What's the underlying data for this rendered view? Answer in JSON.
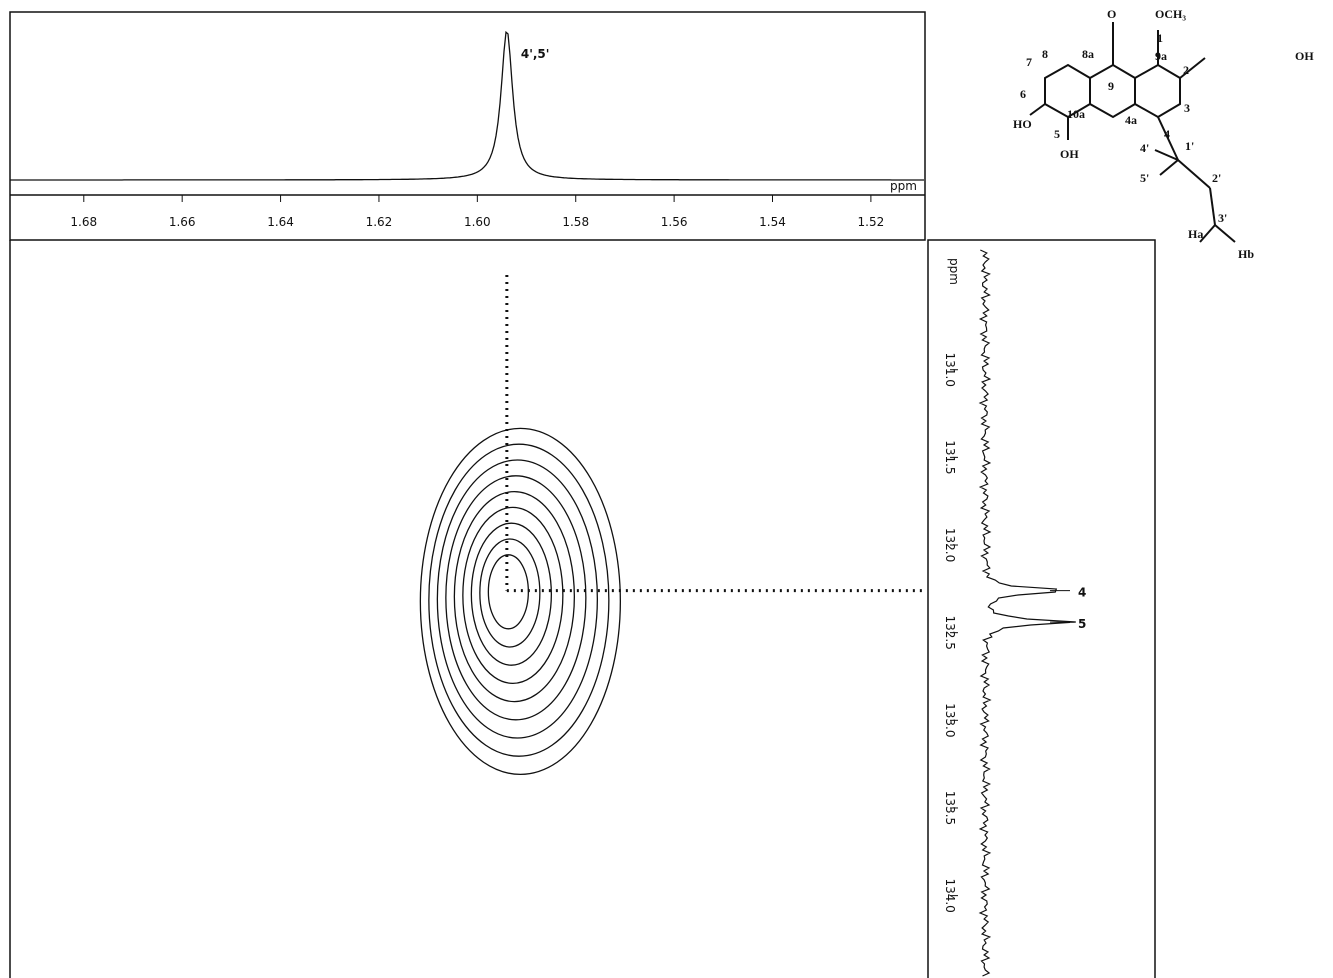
{
  "chart_data": {
    "type": "hmbc",
    "x_unit": "ppm",
    "y_unit": "ppm",
    "xlim": [
      1.695,
      1.509
    ],
    "xticks": [
      1.68,
      1.66,
      1.64,
      1.62,
      {
        "value": 1.6,
        "label": "1.60"
      },
      1.58,
      1.56,
      1.54,
      1.52
    ],
    "ylim": [
      130.26,
      134.47
    ],
    "yticks": [
      {
        "value": 131,
        "label": "131.0"
      },
      131.5,
      {
        "value": 132,
        "label": "132.0"
      },
      132.5,
      {
        "value": 133,
        "label": "133.0"
      },
      133.5,
      {
        "value": 134,
        "label": "134.0"
      }
    ],
    "top_peak": {
      "label": "4',5'",
      "x": 1.594
    },
    "side_peaks": [
      {
        "label": "4",
        "y": 132.26
      },
      {
        "label": "5",
        "y": 132.44
      }
    ],
    "peaks": [
      {
        "x": 1.594,
        "y": 132.26
      }
    ]
  },
  "structure": {
    "labels": [
      "O",
      "OCH₃",
      "OH",
      "HO",
      "OH",
      "Ha",
      "Hb",
      "1",
      "2",
      "3",
      "4",
      "4a",
      "5",
      "6",
      "7",
      "8",
      "8a",
      "9",
      "9a",
      "10a",
      "1'",
      "2'",
      "3'",
      "4'",
      "5'"
    ]
  }
}
